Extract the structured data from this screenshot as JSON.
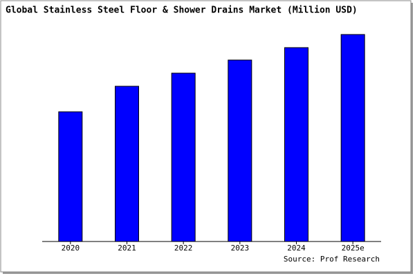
{
  "chart_data": {
    "type": "bar",
    "title": "Global Stainless Steel Floor & Shower Drains Market (Million USD)",
    "source": "Source: Prof Research",
    "categories": [
      "2020",
      "2021",
      "2022",
      "2023",
      "2024",
      "2025e"
    ],
    "values": [
      188,
      225,
      244,
      263,
      281,
      300
    ],
    "color": "#0000ff",
    "ylim": [
      0,
      305
    ]
  }
}
